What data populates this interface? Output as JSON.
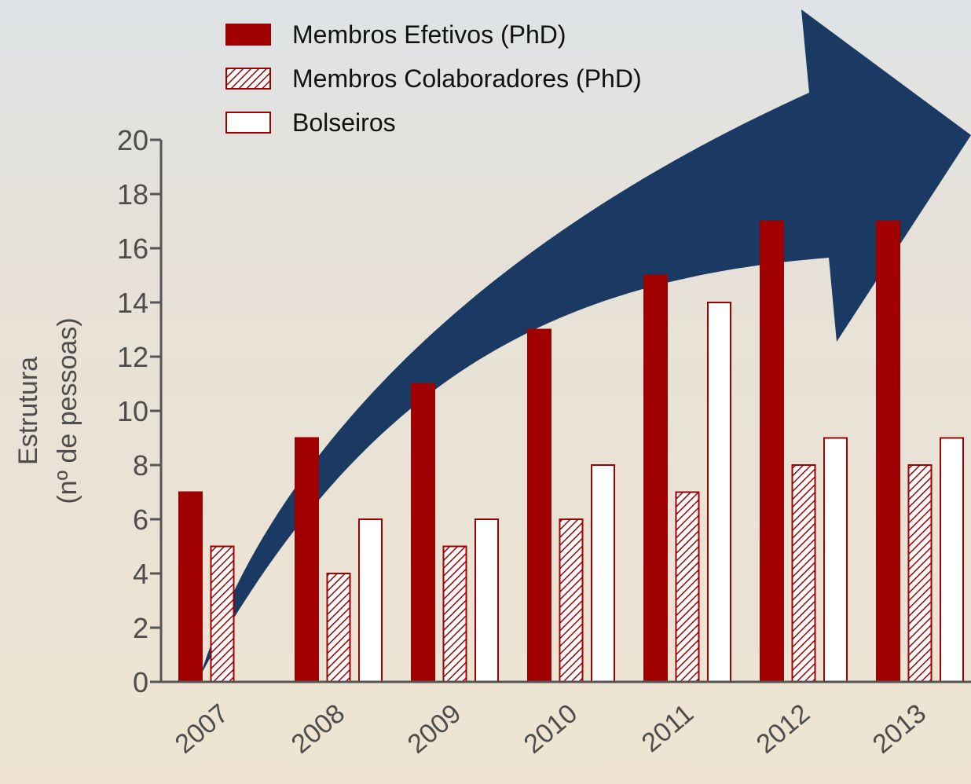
{
  "chart_data": {
    "type": "bar",
    "y_label": [
      "Estrutura",
      "(nº de pessoas)"
    ],
    "categories": [
      "2007",
      "2008",
      "2009",
      "2010",
      "2011",
      "2012",
      "2013"
    ],
    "series": [
      {
        "name": "Membros Efetivos (PhD)",
        "color": "#a00000",
        "style": "solid",
        "values": [
          7,
          9,
          11,
          13,
          15,
          17,
          17
        ]
      },
      {
        "name": "Membros Colaboradores (PhD)",
        "color": "#a00000",
        "style": "hatch",
        "values": [
          5,
          4,
          5,
          6,
          7,
          8,
          8
        ]
      },
      {
        "name": "Bolseiros",
        "color": "#a00000",
        "style": "outline",
        "values": [
          null,
          6,
          6,
          8,
          14,
          9,
          9
        ]
      }
    ],
    "ylim": [
      0,
      20
    ],
    "yticks": [
      0,
      2,
      4,
      6,
      8,
      10,
      12,
      14,
      16,
      18,
      20
    ],
    "legend": "top"
  }
}
